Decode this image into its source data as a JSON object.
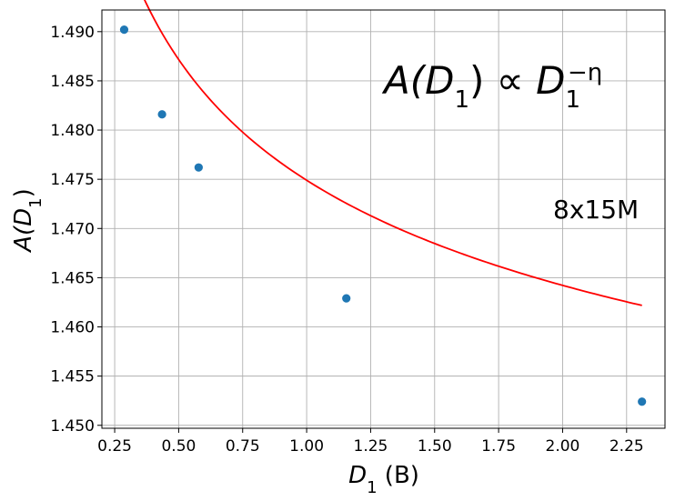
{
  "chart_data": {
    "type": "scatter",
    "title": "",
    "xlabel": {
      "base": "D",
      "sub": "1",
      "unit": " (B)"
    },
    "ylabel": {
      "prefix": "A(",
      "base": "D",
      "sub": "1",
      "suffix": ")"
    },
    "xlim": [
      0.2,
      2.4
    ],
    "ylim": [
      1.4497,
      1.4922
    ],
    "xticks": [
      0.25,
      0.5,
      0.75,
      1.0,
      1.25,
      1.5,
      1.75,
      2.0,
      2.25
    ],
    "xtick_labels": [
      "0.25",
      "0.50",
      "0.75",
      "1.00",
      "1.25",
      "1.50",
      "1.75",
      "2.00",
      "2.25"
    ],
    "yticks": [
      1.45,
      1.455,
      1.46,
      1.465,
      1.47,
      1.475,
      1.48,
      1.485,
      1.49
    ],
    "ytick_labels": [
      "1.450",
      "1.455",
      "1.460",
      "1.465",
      "1.470",
      "1.475",
      "1.480",
      "1.485",
      "1.490"
    ],
    "grid": true,
    "series": [
      {
        "kind": "points",
        "color": "#1f77b4",
        "x": [
          0.287,
          0.435,
          0.578,
          1.155,
          2.31
        ],
        "y": [
          1.4902,
          1.4816,
          1.4762,
          1.4629,
          1.4524
        ]
      },
      {
        "kind": "fit",
        "color": "#ff0000",
        "x_range": [
          0.287,
          2.31
        ],
        "fit_model": {
          "a": 1.3924,
          "b": 0.0825,
          "eta": 0.2
        }
      }
    ],
    "annotations": [
      {
        "id": "formula",
        "text_parts": {
          "a": "A(",
          "d": "D",
          "sub": "1",
          "close": ")",
          "prop": " ∝ ",
          "d2": "D",
          "sub2": "1",
          "sup2": "−η"
        }
      },
      {
        "id": "model",
        "text": "8x15M"
      }
    ]
  }
}
